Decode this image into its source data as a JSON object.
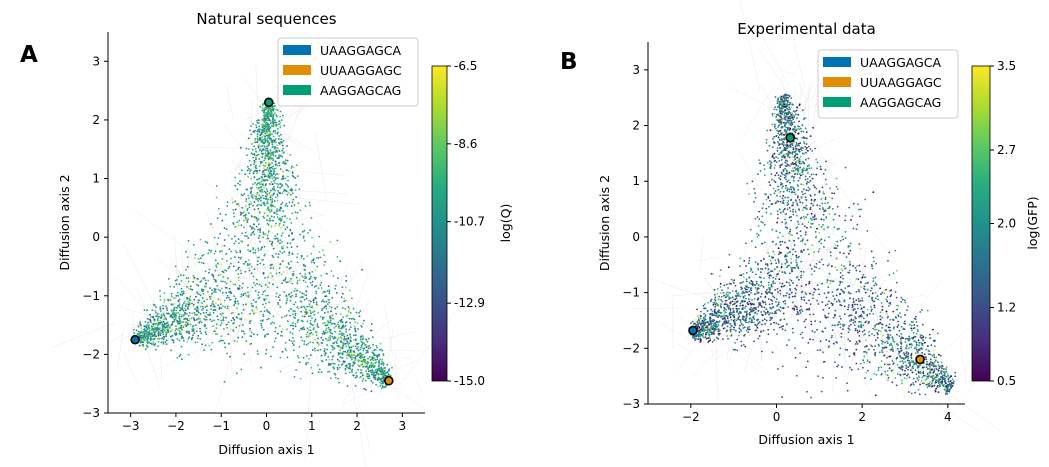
{
  "panels": [
    {
      "letter": "A",
      "chart_data": {
        "type": "scatter",
        "title": "Natural sequences",
        "xlabel": "Diffusion axis 1",
        "ylabel": "Diffusion axis 2",
        "xlim": [
          -3.5,
          3.5
        ],
        "ylim": [
          -3,
          3.5
        ],
        "xticks": [
          "−3",
          "−2",
          "−1",
          "0",
          "1",
          "2",
          "3"
        ],
        "xtick_values": [
          -3,
          -2,
          -1,
          0,
          1,
          2,
          3
        ],
        "yticks": [
          "−3",
          "−2",
          "−1",
          "0",
          "1",
          "2",
          "3"
        ],
        "ytick_values": [
          -3,
          -2,
          -1,
          0,
          1,
          2,
          3
        ],
        "vertices": [
          [
            -2.9,
            -1.75
          ],
          [
            0.05,
            2.3
          ],
          [
            2.7,
            -2.45
          ]
        ],
        "colorbar": {
          "label": "log(Q)",
          "min": -15.0,
          "max": -6.5,
          "ticks": [
            "-6.5",
            "-8.6",
            "-10.7",
            "-12.9",
            "-15.0"
          ],
          "tick_values": [
            -6.5,
            -8.6,
            -10.7,
            -12.9,
            -15.0
          ]
        },
        "legend": {
          "placement": "top-right",
          "entries": [
            {
              "label": "UAAGGAGCA",
              "color": "#0173b2"
            },
            {
              "label": "UUAAGGAGC",
              "color": "#de8f05"
            },
            {
              "label": "AAGGAGCAG",
              "color": "#029e73"
            }
          ]
        },
        "highlight_points": [
          {
            "x": -2.9,
            "y": -1.75,
            "color": "#0173b2"
          },
          {
            "x": 2.7,
            "y": -2.45,
            "color": "#de8f05"
          },
          {
            "x": 0.05,
            "y": 2.3,
            "color": "#029e73"
          }
        ]
      }
    },
    {
      "letter": "B",
      "chart_data": {
        "type": "scatter",
        "title": "Experimental data",
        "xlabel": "Diffusion axis 1",
        "ylabel": "Diffusion axis 2",
        "xlim": [
          -3,
          4.4
        ],
        "ylim": [
          -3,
          3.5
        ],
        "xticks": [
          "−2",
          "0",
          "2",
          "4"
        ],
        "xtick_values": [
          -2,
          0,
          2,
          4
        ],
        "yticks": [
          "−3",
          "−2",
          "−1",
          "0",
          "1",
          "2",
          "3"
        ],
        "ytick_values": [
          -3,
          -2,
          -1,
          0,
          1,
          2,
          3
        ],
        "vertices": [
          [
            -2.0,
            -1.75
          ],
          [
            0.15,
            2.55
          ],
          [
            4.1,
            -2.7
          ]
        ],
        "colorbar": {
          "label": "log(GFP)",
          "min": 0.5,
          "max": 3.5,
          "ticks": [
            "3.5",
            "2.7",
            "2.0",
            "1.2",
            "0.5"
          ],
          "tick_values": [
            3.5,
            2.7,
            2.0,
            1.2,
            0.5
          ]
        },
        "legend": {
          "placement": "top-right",
          "entries": [
            {
              "label": "UAAGGAGCA",
              "color": "#0173b2"
            },
            {
              "label": "UUAAGGAGC",
              "color": "#de8f05"
            },
            {
              "label": "AAGGAGCAG",
              "color": "#029e73"
            }
          ]
        },
        "highlight_points": [
          {
            "x": -1.95,
            "y": -1.68,
            "color": "#0173b2"
          },
          {
            "x": 3.35,
            "y": -2.2,
            "color": "#de8f05"
          },
          {
            "x": 0.32,
            "y": 1.78,
            "color": "#029e73"
          }
        ]
      }
    }
  ]
}
